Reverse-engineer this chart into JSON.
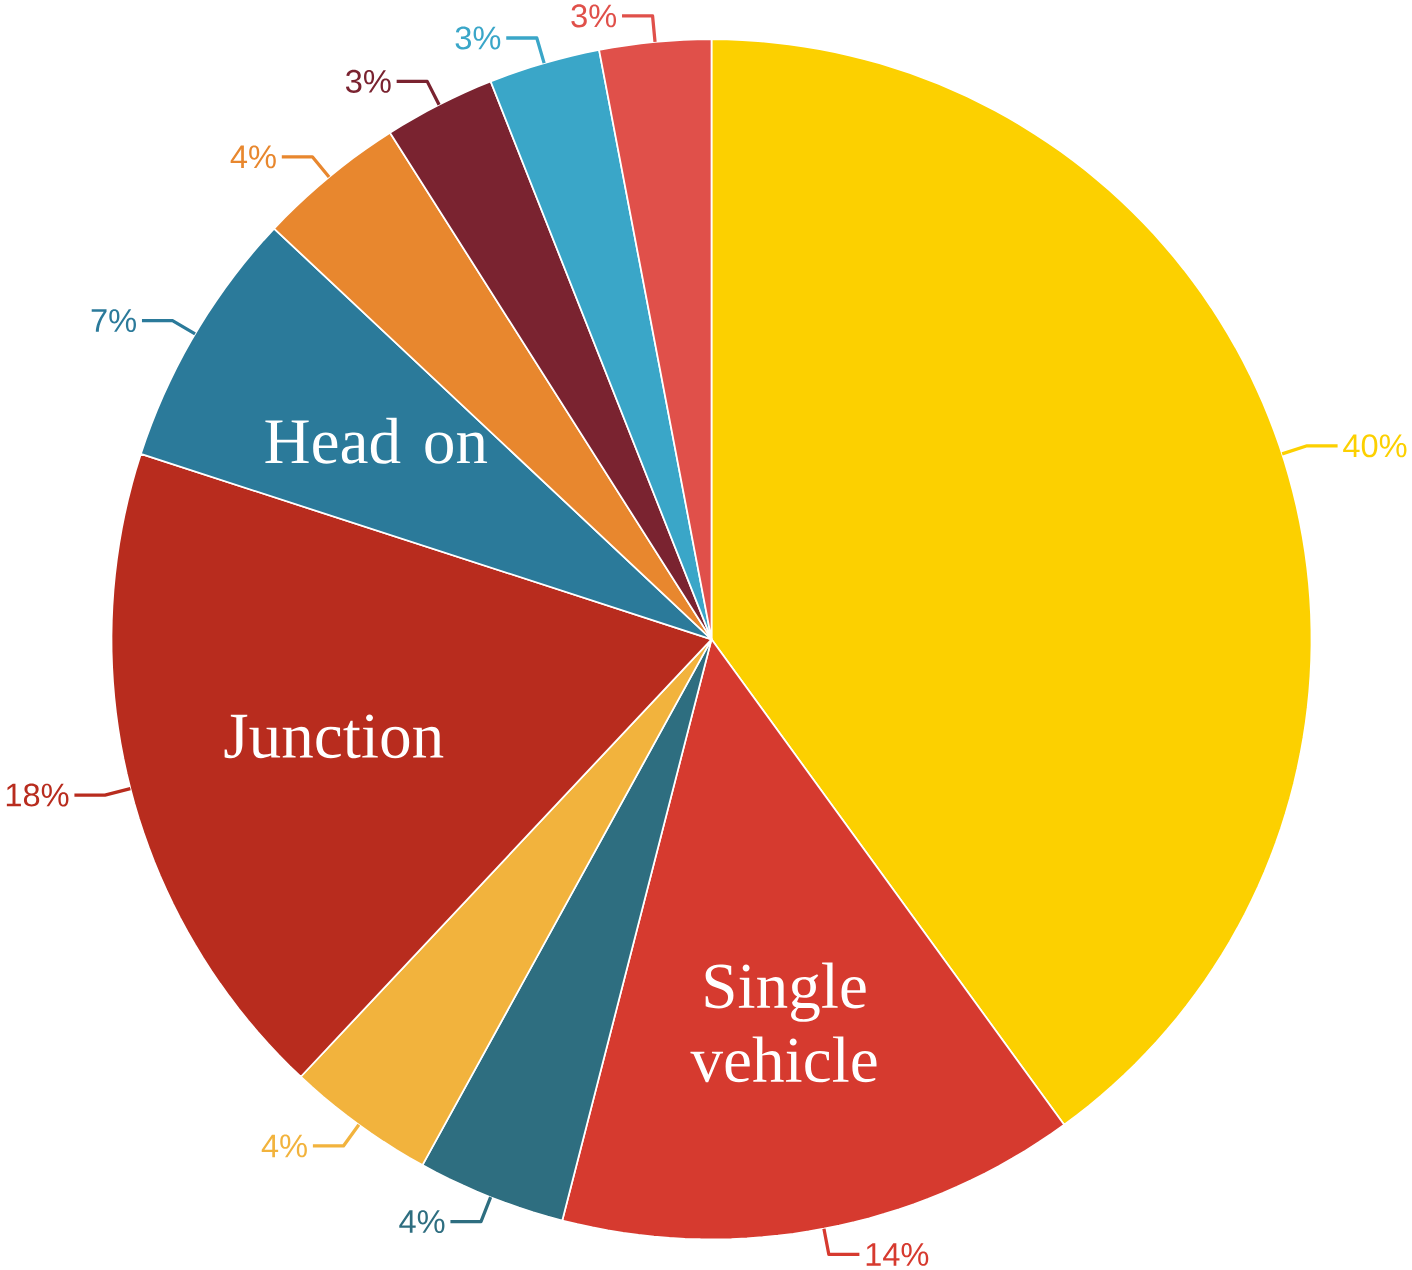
{
  "chart_data": {
    "type": "pie",
    "categories": [
      null,
      "Single vehicle",
      null,
      null,
      "Junction",
      "Head on",
      null,
      null,
      null,
      null
    ],
    "values": [
      40,
      14,
      4,
      4,
      18,
      7,
      4,
      3,
      3,
      3
    ],
    "colors": [
      "#fcd000",
      "#d63a2f",
      "#2e6e80",
      "#f2b33d",
      "#b82c1e",
      "#2b7a9a",
      "#e8872e",
      "#7a2330",
      "#3aa6c8",
      "#e0504a"
    ],
    "value_labels": [
      "40%",
      "14%",
      "4%",
      "4%",
      "18%",
      "7%",
      "4%",
      "3%",
      "3%",
      "3%"
    ]
  }
}
